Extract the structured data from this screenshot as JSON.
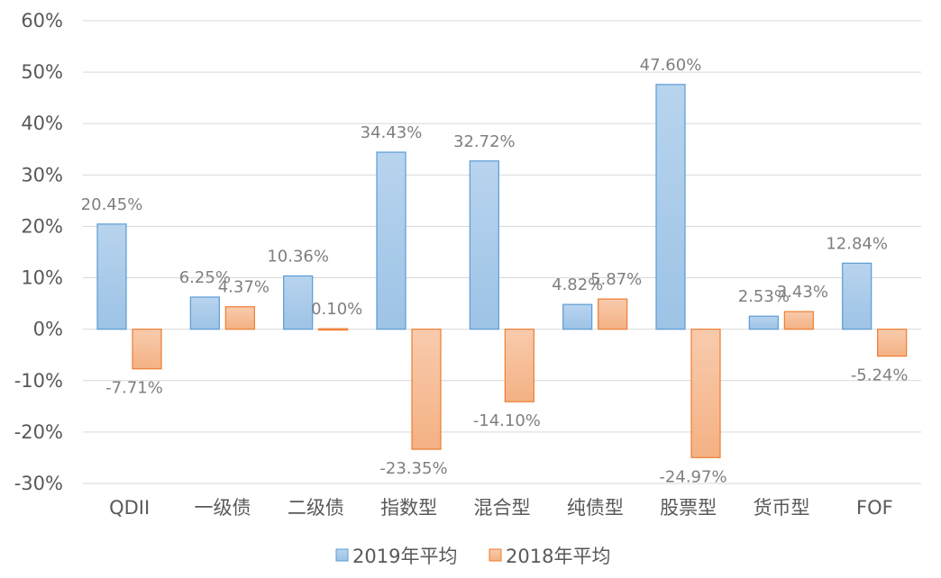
{
  "chart_data": {
    "type": "bar",
    "categories": [
      "QDII",
      "一级债",
      "二级债",
      "指数型",
      "混合型",
      "纯债型",
      "股票型",
      "货币型",
      "FOF"
    ],
    "series": [
      {
        "name": "2019年平均",
        "values": [
          20.45,
          6.25,
          10.36,
          34.43,
          32.72,
          4.82,
          47.6,
          2.53,
          12.84
        ],
        "labels": [
          "20.45%",
          "6.25%",
          "10.36%",
          "34.43%",
          "32.72%",
          "4.82%",
          "47.60%",
          "2.53%",
          "12.84%"
        ],
        "color": "#9dc3e6",
        "color_top": "#b8d4ee",
        "stroke": "#5b9bd5"
      },
      {
        "name": "2018年平均",
        "values": [
          -7.71,
          4.37,
          0.1,
          -23.35,
          -14.1,
          5.87,
          -24.97,
          3.43,
          -5.24
        ],
        "labels": [
          "-7.71%",
          "4.37%",
          "0.10%",
          "-23.35%",
          "-14.10%",
          "5.87%",
          "-24.97%",
          "3.43%",
          "-5.24%"
        ],
        "color": "#f4b183",
        "color_top": "#f8cbad",
        "stroke": "#ed7d31"
      }
    ],
    "ylim": [
      -30,
      60
    ],
    "yticks": [
      60,
      50,
      40,
      30,
      20,
      10,
      0,
      -10,
      -20,
      -30
    ],
    "ytick_labels": [
      "60%",
      "50%",
      "40%",
      "30%",
      "20%",
      "10%",
      "0%",
      "-10%",
      "-20%",
      "-30%"
    ],
    "grid": true,
    "legend": "bottom",
    "title": "",
    "xlabel": "",
    "ylabel": ""
  }
}
